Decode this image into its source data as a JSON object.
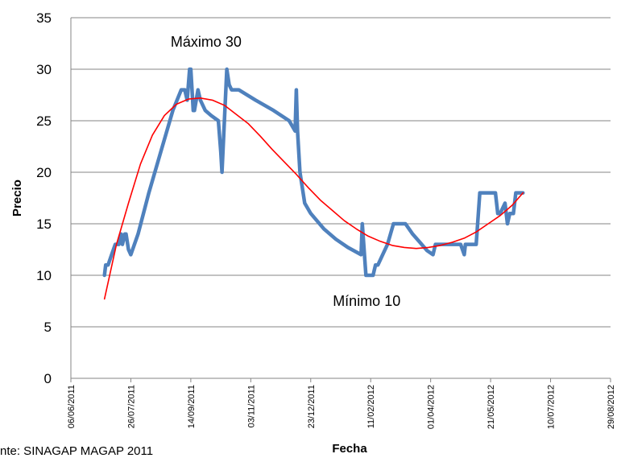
{
  "chart_data": {
    "type": "line",
    "title_fragment": "    ",
    "xlabel": "Fecha",
    "ylabel": "Precio",
    "ylim": [
      0,
      35
    ],
    "yticks": [
      0,
      5,
      10,
      15,
      20,
      25,
      30,
      35
    ],
    "xlim": [
      "2011-06-06",
      "2012-08-29"
    ],
    "xticks": [
      "06/06/2011",
      "26/07/2011",
      "14/09/2011",
      "03/11/2011",
      "23/12/2011",
      "11/02/2012",
      "01/04/2012",
      "21/05/2012",
      "10/07/2012",
      "29/08/2012"
    ],
    "grid": "horizontal",
    "annotations": [
      {
        "text": "Máximo 30",
        "x": "2011-09-14",
        "y": 30
      },
      {
        "text": "Mínimo 10",
        "x": "2012-02-13",
        "y": 10
      }
    ],
    "series": [
      {
        "role": "price",
        "color": "#4F81BD",
        "points": [
          [
            "2011-07-04",
            10
          ],
          [
            "2011-07-05",
            11
          ],
          [
            "2011-07-07",
            11
          ],
          [
            "2011-07-10",
            12
          ],
          [
            "2011-07-13",
            13
          ],
          [
            "2011-07-16",
            13
          ],
          [
            "2011-07-18",
            14
          ],
          [
            "2011-07-19",
            13
          ],
          [
            "2011-07-21",
            14
          ],
          [
            "2011-07-22",
            14
          ],
          [
            "2011-07-24",
            12.5
          ],
          [
            "2011-07-26",
            12
          ],
          [
            "2011-08-01",
            14
          ],
          [
            "2011-08-10",
            18
          ],
          [
            "2011-08-20",
            22
          ],
          [
            "2011-08-30",
            26
          ],
          [
            "2011-09-06",
            28
          ],
          [
            "2011-09-09",
            28
          ],
          [
            "2011-09-11",
            27
          ],
          [
            "2011-09-13",
            30
          ],
          [
            "2011-09-14",
            30
          ],
          [
            "2011-09-16",
            26
          ],
          [
            "2011-09-17",
            26
          ],
          [
            "2011-09-20",
            28
          ],
          [
            "2011-09-22",
            27
          ],
          [
            "2011-09-26",
            26
          ],
          [
            "2011-10-01",
            25.5
          ],
          [
            "2011-10-07",
            25
          ],
          [
            "2011-10-09",
            22
          ],
          [
            "2011-10-10",
            20
          ],
          [
            "2011-10-14",
            30
          ],
          [
            "2011-10-16",
            28.5
          ],
          [
            "2011-10-18",
            28
          ],
          [
            "2011-10-24",
            28
          ],
          [
            "2011-11-07",
            27
          ],
          [
            "2011-11-22",
            26
          ],
          [
            "2011-12-05",
            25
          ],
          [
            "2011-12-10",
            24
          ],
          [
            "2011-12-11",
            28
          ],
          [
            "2011-12-12",
            24
          ],
          [
            "2011-12-14",
            20
          ],
          [
            "2011-12-18",
            17
          ],
          [
            "2011-12-23",
            16
          ],
          [
            "2012-01-03",
            14.5
          ],
          [
            "2012-01-13",
            13.5
          ],
          [
            "2012-01-23",
            12.7
          ],
          [
            "2012-02-03",
            12
          ],
          [
            "2012-02-04",
            15
          ],
          [
            "2012-02-07",
            10
          ],
          [
            "2012-02-13",
            10
          ],
          [
            "2012-02-15",
            11
          ],
          [
            "2012-02-17",
            11
          ],
          [
            "2012-02-21",
            12
          ],
          [
            "2012-02-25",
            13
          ],
          [
            "2012-03-01",
            15
          ],
          [
            "2012-03-11",
            15
          ],
          [
            "2012-03-17",
            14
          ],
          [
            "2012-03-23",
            13.2
          ],
          [
            "2012-03-29",
            12.4
          ],
          [
            "2012-04-03",
            12
          ],
          [
            "2012-04-05",
            13
          ],
          [
            "2012-04-12",
            13
          ],
          [
            "2012-04-22",
            13
          ],
          [
            "2012-04-26",
            13
          ],
          [
            "2012-04-29",
            12
          ],
          [
            "2012-04-30",
            13
          ],
          [
            "2012-05-05",
            13
          ],
          [
            "2012-05-09",
            13
          ],
          [
            "2012-05-12",
            18
          ],
          [
            "2012-05-15",
            18
          ],
          [
            "2012-05-25",
            18
          ],
          [
            "2012-05-27",
            16
          ],
          [
            "2012-05-29",
            16
          ],
          [
            "2012-06-02",
            17
          ],
          [
            "2012-06-04",
            15
          ],
          [
            "2012-06-06",
            16
          ],
          [
            "2012-06-09",
            16
          ],
          [
            "2012-06-11",
            18
          ],
          [
            "2012-06-17",
            18
          ]
        ]
      },
      {
        "role": "trendline",
        "color": "#FF0000",
        "points": [
          [
            "2011-07-04",
            7.7
          ],
          [
            "2011-07-14",
            13.0
          ],
          [
            "2011-07-24",
            17.0
          ],
          [
            "2011-08-03",
            20.8
          ],
          [
            "2011-08-13",
            23.6
          ],
          [
            "2011-08-23",
            25.5
          ],
          [
            "2011-09-02",
            26.6
          ],
          [
            "2011-09-12",
            27.1
          ],
          [
            "2011-09-22",
            27.2
          ],
          [
            "2011-10-02",
            27.0
          ],
          [
            "2011-10-12",
            26.5
          ],
          [
            "2011-10-22",
            25.6
          ],
          [
            "2011-11-01",
            24.7
          ],
          [
            "2011-11-11",
            23.5
          ],
          [
            "2011-11-21",
            22.2
          ],
          [
            "2011-12-01",
            21.0
          ],
          [
            "2011-12-11",
            19.8
          ],
          [
            "2011-12-21",
            18.5
          ],
          [
            "2011-12-31",
            17.3
          ],
          [
            "2012-01-10",
            16.3
          ],
          [
            "2012-01-20",
            15.3
          ],
          [
            "2012-01-30",
            14.5
          ],
          [
            "2012-02-09",
            13.8
          ],
          [
            "2012-02-19",
            13.3
          ],
          [
            "2012-02-29",
            12.9
          ],
          [
            "2012-03-10",
            12.7
          ],
          [
            "2012-03-20",
            12.6
          ],
          [
            "2012-03-30",
            12.7
          ],
          [
            "2012-04-09",
            12.9
          ],
          [
            "2012-04-19",
            13.2
          ],
          [
            "2012-04-29",
            13.6
          ],
          [
            "2012-05-09",
            14.2
          ],
          [
            "2012-05-19",
            15.0
          ],
          [
            "2012-05-29",
            15.8
          ],
          [
            "2012-06-08",
            16.8
          ],
          [
            "2012-06-17",
            18.0
          ]
        ]
      }
    ]
  },
  "footer": {
    "source_text": "nte: SINAGAP MAGAP 2011"
  }
}
